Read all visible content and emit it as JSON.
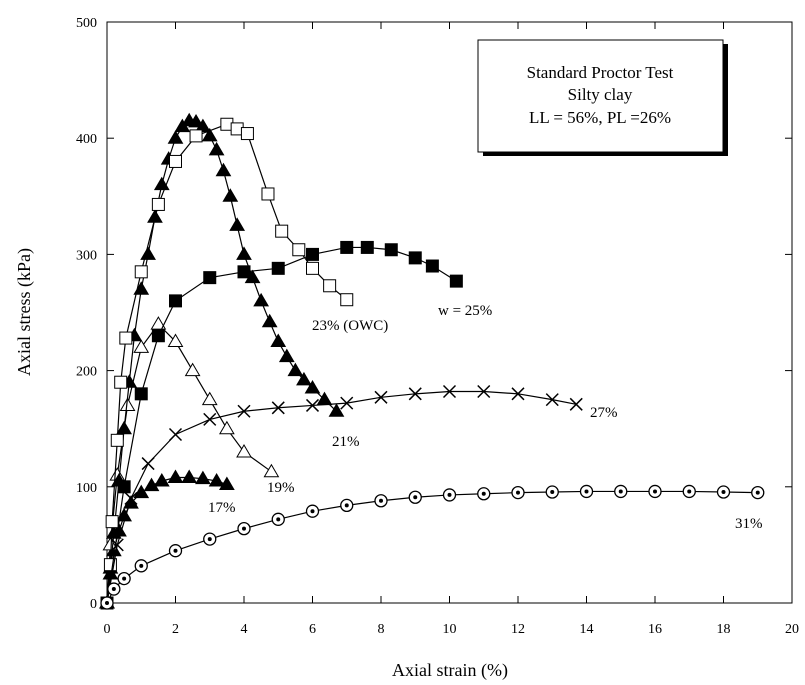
{
  "chart_data": {
    "type": "line",
    "legend_box": [
      "Standard Proctor Test",
      "Silty clay",
      "LL = 56%, PL =26%"
    ],
    "xlabel": "Axial strain (%)",
    "ylabel": "Axial stress (kPa)",
    "xlim": [
      0,
      20
    ],
    "ylim": [
      0,
      500
    ],
    "xticks": [
      0,
      2,
      4,
      6,
      8,
      10,
      12,
      14,
      16,
      18,
      20
    ],
    "yticks": [
      0,
      100,
      200,
      300,
      400,
      500
    ],
    "series": [
      {
        "name": "17%",
        "color": "#000",
        "marker": "filled-triangle",
        "x": [
          0,
          0.1,
          0.2,
          0.35,
          0.5,
          0.7,
          1,
          1.3,
          1.6,
          2,
          2.4,
          2.8,
          3.2,
          3.5
        ],
        "values": [
          0,
          25,
          45,
          62,
          75,
          86,
          95,
          101,
          105,
          108,
          108,
          107,
          105,
          102
        ]
      },
      {
        "name": "19%",
        "color": "#000",
        "marker": "open-triangle",
        "x": [
          0,
          0.1,
          0.3,
          0.6,
          1,
          1.5,
          2,
          2.5,
          3,
          3.5,
          4,
          4.8
        ],
        "values": [
          0,
          50,
          110,
          170,
          220,
          240,
          225,
          200,
          175,
          150,
          130,
          113
        ]
      },
      {
        "name": "21%",
        "color": "#000",
        "marker": "filled-triangle",
        "x": [
          0,
          0.1,
          0.2,
          0.35,
          0.5,
          0.65,
          0.8,
          1,
          1.2,
          1.4,
          1.6,
          1.8,
          2,
          2.2,
          2.4,
          2.6,
          2.8,
          3,
          3.2,
          3.4,
          3.6,
          3.8,
          4,
          4.25,
          4.5,
          4.75,
          5,
          5.25,
          5.5,
          5.75,
          6,
          6.35,
          6.7
        ],
        "values": [
          0,
          30,
          60,
          105,
          150,
          190,
          230,
          270,
          300,
          332,
          360,
          382,
          400,
          410,
          415,
          414,
          410,
          402,
          390,
          372,
          350,
          325,
          300,
          280,
          260,
          242,
          225,
          212,
          200,
          192,
          185,
          175,
          165
        ]
      },
      {
        "name": "23% (OWC)",
        "color": "#000",
        "marker": "open-square",
        "x": [
          0,
          0.1,
          0.15,
          0.3,
          0.4,
          0.55,
          1,
          1.5,
          2,
          2.6,
          3.5,
          3.8,
          4.1,
          4.7,
          5.1,
          5.6,
          6,
          6.5,
          7
        ],
        "values": [
          0,
          33,
          70,
          140,
          190,
          228,
          285,
          343,
          380,
          402,
          412,
          408,
          404,
          352,
          320,
          304,
          288,
          273,
          261
        ]
      },
      {
        "name": "w = 25%",
        "color": "#000",
        "marker": "filled-square",
        "x": [
          0,
          0.5,
          1,
          1.5,
          2,
          3,
          4,
          5,
          6,
          7,
          7.6,
          8.3,
          9,
          9.5,
          10.2
        ],
        "values": [
          0,
          100,
          180,
          230,
          260,
          280,
          285,
          288,
          300,
          306,
          306,
          304,
          297,
          290,
          277
        ]
      },
      {
        "name": "27%",
        "color": "#000",
        "marker": "x",
        "x": [
          0,
          0.3,
          0.7,
          1.2,
          2,
          3,
          4,
          5,
          6,
          7,
          8,
          9,
          10,
          11,
          12,
          13,
          13.7
        ],
        "values": [
          0,
          50,
          90,
          120,
          145,
          158,
          165,
          168,
          170,
          172,
          177,
          180,
          182,
          182,
          180,
          175,
          171
        ]
      },
      {
        "name": "31%",
        "color": "#000",
        "marker": "circle-dot",
        "x": [
          0,
          0.2,
          0.5,
          1,
          2,
          3,
          4,
          5,
          6,
          7,
          8,
          9,
          10,
          11,
          12,
          13,
          14,
          15,
          16,
          17,
          18,
          19
        ],
        "values": [
          0,
          12,
          21,
          32,
          45,
          55,
          64,
          72,
          79,
          84,
          88,
          91,
          93,
          94,
          95,
          95.5,
          96,
          96,
          96,
          96,
          95.5,
          95
        ]
      }
    ]
  }
}
